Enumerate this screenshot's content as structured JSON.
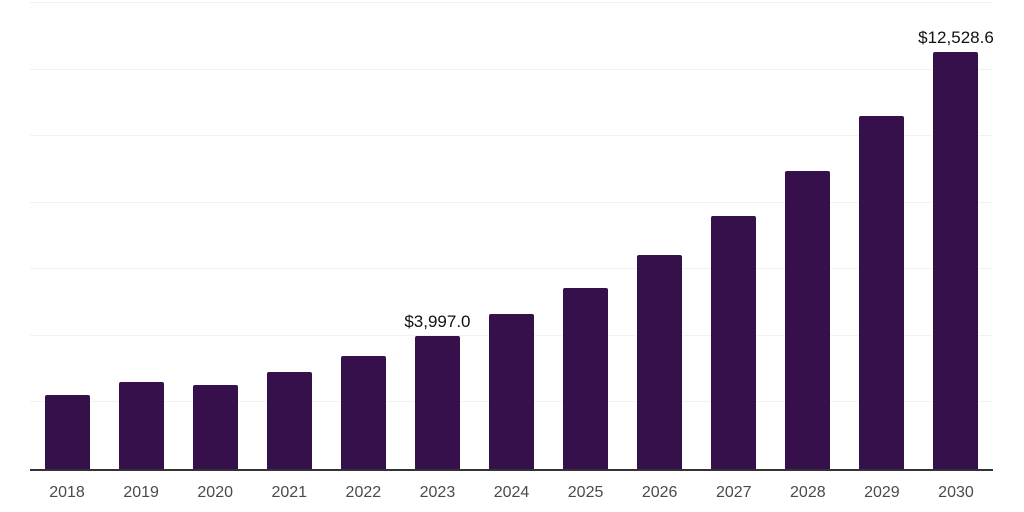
{
  "chart_data": {
    "type": "bar",
    "title": "",
    "xlabel": "",
    "ylabel": "",
    "categories": [
      "2018",
      "2019",
      "2020",
      "2021",
      "2022",
      "2023",
      "2024",
      "2025",
      "2026",
      "2027",
      "2028",
      "2029",
      "2030"
    ],
    "values": [
      2230,
      2620,
      2515,
      2920,
      3385,
      3997.0,
      4655,
      5435,
      6435,
      7590,
      8965,
      10610,
      12528.6
    ],
    "data_labels": [
      {
        "index": 5,
        "text": "$3,997.0"
      },
      {
        "index": 12,
        "text": "$12,528.6"
      }
    ],
    "ylim": [
      0,
      14000
    ],
    "gridline_step": 2000,
    "grid": true,
    "legend": false
  },
  "colors": {
    "bar": "#36104B",
    "gridline": "#f2f2f2",
    "axis_line": "#333333",
    "tick_label": "#4a4a4a",
    "data_label": "#111111",
    "background": "#ffffff"
  }
}
